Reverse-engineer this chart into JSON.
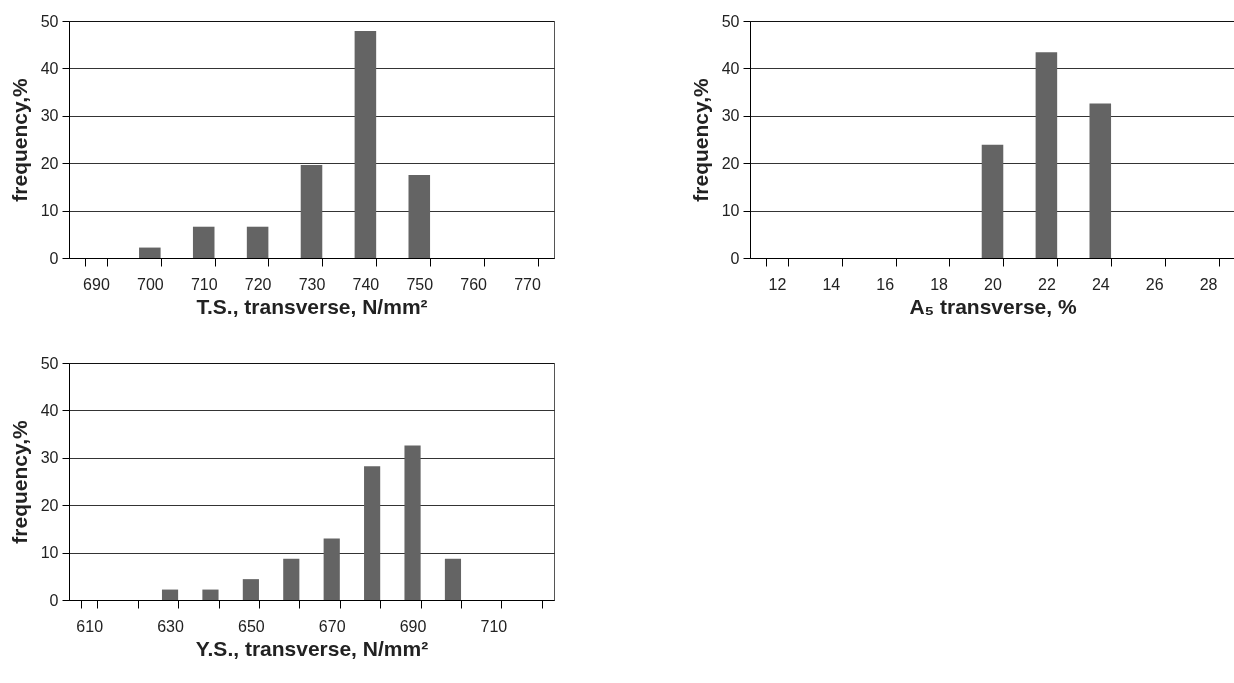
{
  "chart_data": [
    {
      "type": "bar",
      "xlabel": "T.S., transverse, N/mm²",
      "ylabel": "frequency,%",
      "categories": [
        "690",
        "700",
        "710",
        "720",
        "730",
        "740",
        "750",
        "760",
        "770"
      ],
      "values": [
        0,
        2.2,
        6.6,
        6.6,
        19.6,
        47.9,
        17.5,
        0,
        0
      ],
      "color": "#646464",
      "ylim": [
        0,
        50
      ],
      "yticks": [
        0,
        10,
        20,
        30,
        40,
        50
      ],
      "grid": "y"
    },
    {
      "type": "bar",
      "xlabel": "A₅ transverse, %",
      "ylabel": "frequency,%",
      "categories": [
        "12",
        "14",
        "16",
        "18",
        "20",
        "22",
        "24",
        "26",
        "28"
      ],
      "values": [
        0,
        0,
        0,
        0,
        23.9,
        43.4,
        32.6,
        0,
        0
      ],
      "color": "#646464",
      "ylim": [
        0,
        50
      ],
      "yticks": [
        0,
        10,
        20,
        30,
        40,
        50
      ],
      "grid": "y"
    },
    {
      "type": "bar",
      "xlabel": "Y.S., transverse, N/mm²",
      "ylabel": "frequency,%",
      "categories": [
        "610",
        null,
        "630",
        null,
        "650",
        null,
        "670",
        null,
        "690",
        null,
        "710",
        null
      ],
      "values": [
        0,
        0,
        2.2,
        2.2,
        4.4,
        8.7,
        13,
        28.2,
        32.6,
        8.7,
        0,
        0
      ],
      "color": "#646464",
      "ylim": [
        0,
        50
      ],
      "yticks": [
        0,
        10,
        20,
        30,
        40,
        50
      ],
      "grid": "y"
    }
  ]
}
